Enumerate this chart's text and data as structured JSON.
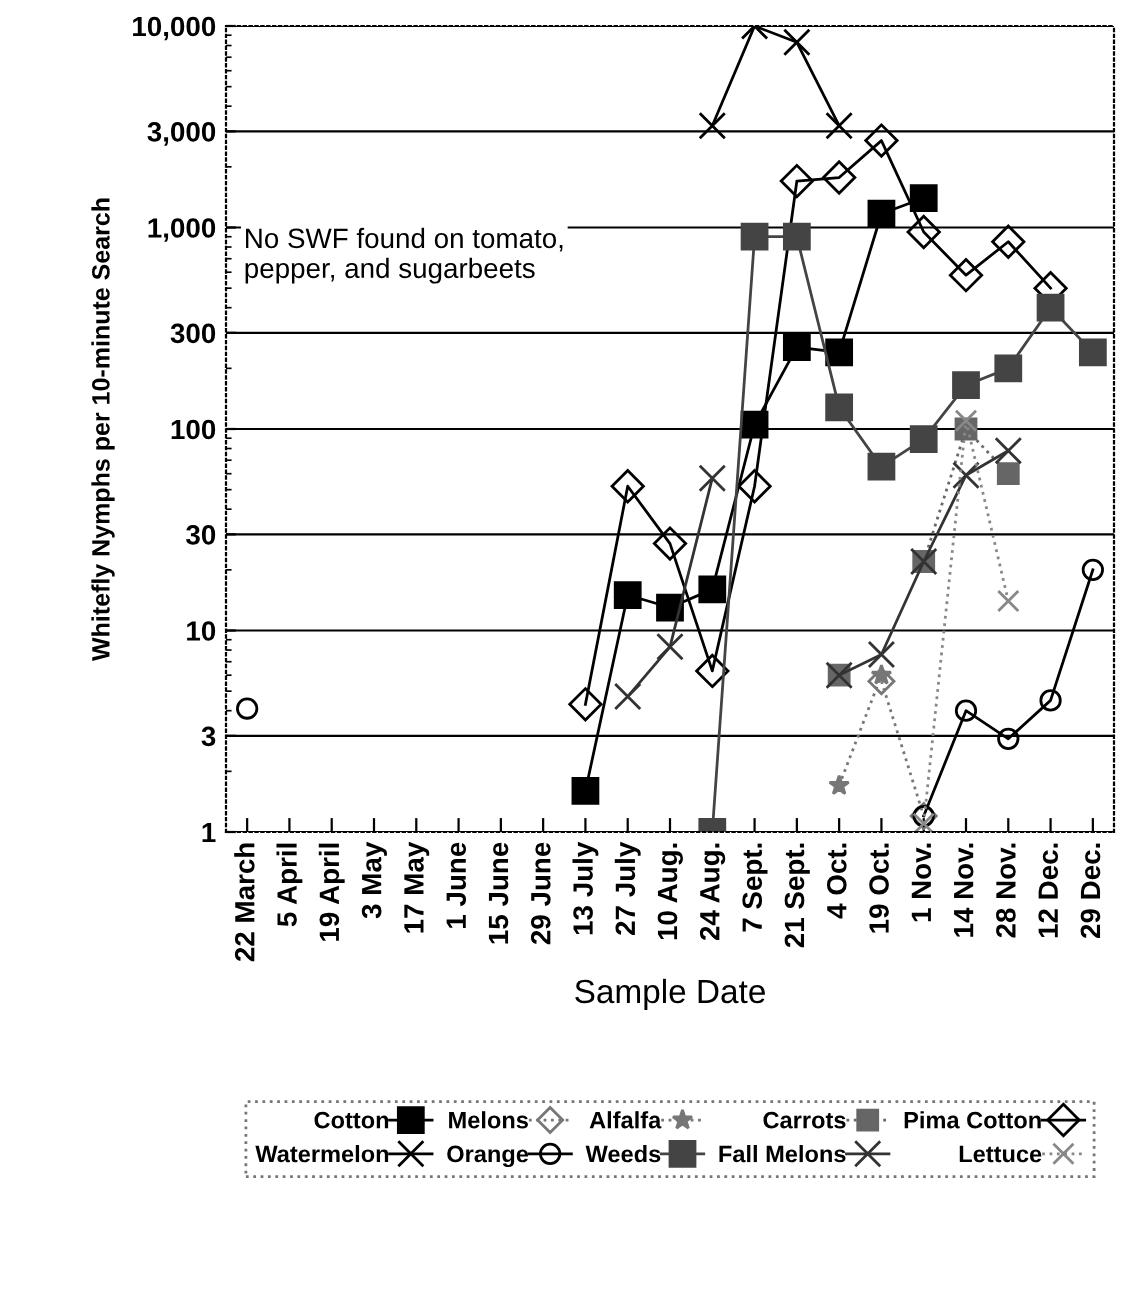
{
  "chart_data": {
    "type": "line",
    "xlabel": "Sample Date",
    "ylabel": "Whitefly Nymphs per 10-minute Search",
    "categories": [
      "22 March",
      "5 April",
      "19 April",
      "3 May",
      "17 May",
      "1 June",
      "15 June",
      "29 June",
      "13 July",
      "27 July",
      "10 Aug.",
      "24 Aug.",
      "7 Sept.",
      "21 Sept.",
      "4 Oct.",
      "19 Oct.",
      "1 Nov.",
      "14 Nov.",
      "28 Nov.",
      "12 Dec.",
      "29 Dec."
    ],
    "log": "y",
    "ylim": [
      1,
      10000
    ],
    "yticks": [
      1,
      3,
      10,
      30,
      100,
      300,
      {
        "value": 1000,
        "label": "1,000"
      },
      {
        "value": 3000,
        "label": "3,000"
      },
      {
        "value": 10000,
        "label": "10,000"
      }
    ],
    "grid": "y",
    "legend": "bottom",
    "annotations": [
      "No SWF found on tomato,\npepper, and sugarbeets"
    ],
    "series": [
      {
        "name": "Cotton",
        "color": "#000000",
        "marker": "square",
        "line_style": "solid",
        "values": [
          null,
          null,
          null,
          null,
          null,
          null,
          null,
          null,
          1.6,
          15,
          13,
          16,
          105,
          255,
          240,
          1170,
          1400,
          null,
          null,
          null,
          null
        ]
      },
      {
        "name": "Melons",
        "color": "#777777",
        "marker": "diamond",
        "line_style": "dotted",
        "values": [
          null,
          null,
          null,
          null,
          null,
          null,
          null,
          null,
          null,
          null,
          null,
          null,
          null,
          null,
          null,
          5.6,
          1.2,
          null,
          null,
          null,
          null
        ]
      },
      {
        "name": "Alfalfa",
        "color": "#777777",
        "marker": "star",
        "line_style": "dotted",
        "values": [
          null,
          null,
          null,
          null,
          null,
          null,
          null,
          null,
          null,
          null,
          null,
          null,
          null,
          null,
          1.7,
          6,
          null,
          null,
          null,
          null,
          null
        ]
      },
      {
        "name": "Carrots",
        "color": "#666666",
        "marker": "square",
        "line_style": "dotted",
        "values": [
          null,
          null,
          null,
          null,
          null,
          null,
          null,
          null,
          null,
          null,
          null,
          null,
          null,
          null,
          6,
          null,
          22,
          100,
          60,
          null,
          null
        ]
      },
      {
        "name": "Pima Cotton",
        "color": "#000000",
        "marker": "diamond",
        "line_style": "solid",
        "values": [
          null,
          null,
          null,
          null,
          null,
          null,
          null,
          null,
          4.3,
          52,
          27,
          6.3,
          52,
          1700,
          1770,
          2700,
          950,
          580,
          850,
          500,
          null
        ]
      },
      {
        "name": "Watermelon",
        "color": "#000000",
        "marker": "cross",
        "line_style": "solid",
        "values": [
          null,
          null,
          null,
          null,
          null,
          null,
          null,
          null,
          null,
          null,
          null,
          3200,
          10000,
          8300,
          3200,
          null,
          null,
          null,
          null,
          null,
          null
        ]
      },
      {
        "name": "Orange",
        "color": "#000000",
        "marker": "circle",
        "line_style": "solid",
        "values": [
          4.1,
          null,
          null,
          null,
          null,
          null,
          null,
          null,
          null,
          null,
          null,
          null,
          null,
          null,
          null,
          null,
          1.2,
          4,
          2.9,
          4.5,
          20
        ]
      },
      {
        "name": "Weeds",
        "color": "#444444",
        "marker": "square",
        "line_style": "solid",
        "values": [
          null,
          null,
          null,
          null,
          null,
          null,
          null,
          null,
          null,
          null,
          null,
          1,
          900,
          900,
          128,
          65,
          89,
          165,
          200,
          400,
          240
        ]
      },
      {
        "name": "Fall Melons",
        "color": "#333333",
        "marker": "cross",
        "line_style": "solid",
        "values": [
          null,
          null,
          null,
          null,
          null,
          null,
          null,
          null,
          null,
          4.7,
          8.3,
          57,
          null,
          null,
          6,
          7.6,
          22,
          59,
          78,
          null,
          null
        ]
      },
      {
        "name": "Lettuce",
        "color": "#888888",
        "marker": "cross",
        "line_style": "dotted",
        "values": [
          null,
          null,
          null,
          null,
          null,
          null,
          null,
          null,
          null,
          null,
          null,
          null,
          null,
          null,
          null,
          null,
          1.1,
          110,
          14,
          null,
          null
        ]
      }
    ]
  }
}
